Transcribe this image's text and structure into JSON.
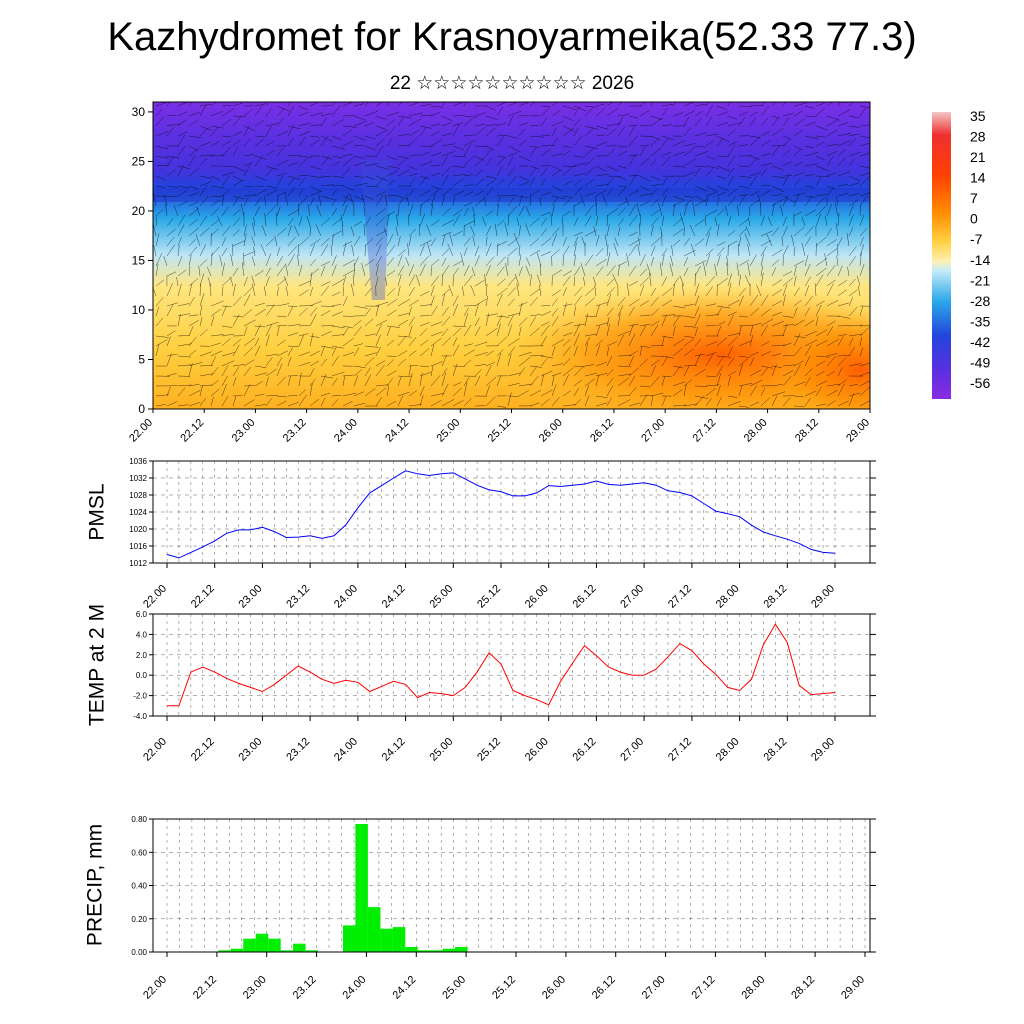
{
  "page": {
    "title": "Kazhydromet for Krasnoyarmeika(52.33 77.3)",
    "subtitle": "22 ☆☆☆☆☆☆☆☆☆☆ 2026"
  },
  "chart_data": [
    {
      "id": "cross-section",
      "type": "heatmap",
      "title": "",
      "x_tick_labels": [
        "22.00",
        "22.12",
        "23.00",
        "23.12",
        "24.00",
        "24.12",
        "25.00",
        "25.12",
        "26.00",
        "26.12",
        "27.00",
        "27.12",
        "28.00",
        "28.12",
        "29.00"
      ],
      "y_tick_labels": [
        "0",
        "5",
        "10",
        "15",
        "20",
        "25",
        "30"
      ],
      "ylim": [
        0,
        31
      ],
      "colorbar": {
        "labels": [
          "35",
          "28",
          "21",
          "14",
          "7",
          "0",
          "-7",
          "-14",
          "-21",
          "-28",
          "-35",
          "-42",
          "-49",
          "-56"
        ],
        "colors": {
          "warm": "#ff6a00",
          "yellow": "#ffd84a",
          "cyan": "#2aa8e8",
          "blue": "#3344e0",
          "violet": "#8a2be2"
        }
      }
    },
    {
      "id": "pmsl",
      "type": "line",
      "ylabel": "PMSL",
      "ylim": [
        1012,
        1036
      ],
      "y_tick_labels": [
        "1036",
        "1032",
        "1028",
        "1024",
        "1020",
        "1016",
        "1012"
      ],
      "y_ticks": [
        1036,
        1032,
        1028,
        1024,
        1020,
        1016,
        1012
      ],
      "x_tick_labels": [
        "22.00",
        "22.12",
        "23.00",
        "23.12",
        "24.00",
        "24.12",
        "25.00",
        "25.12",
        "26.00",
        "26.12",
        "27.00",
        "27.12",
        "28.00",
        "28.12",
        "29.00"
      ],
      "line_color": "#0000ff",
      "values": [
        1014.0,
        1013.2,
        1014.5,
        1015.8,
        1017.2,
        1019.0,
        1019.8,
        1019.8,
        1020.4,
        1019.4,
        1018.0,
        1018.1,
        1018.4,
        1017.8,
        1018.4,
        1021.0,
        1025.0,
        1028.5,
        1030.2,
        1032.0,
        1033.7,
        1033.0,
        1032.6,
        1033.0,
        1033.2,
        1031.8,
        1030.3,
        1029.2,
        1028.8,
        1027.8,
        1027.8,
        1028.5,
        1030.2,
        1030.0,
        1030.3,
        1030.6,
        1031.3,
        1030.5,
        1030.3,
        1030.6,
        1030.9,
        1030.3,
        1029.0,
        1028.6,
        1027.8,
        1026.0,
        1024.2,
        1023.6,
        1022.9,
        1020.9,
        1019.3,
        1018.4,
        1017.6,
        1016.6,
        1015.2,
        1014.5,
        1014.3
      ]
    },
    {
      "id": "temp2m",
      "type": "line",
      "ylabel": "TEMP at 2 M",
      "ylim": [
        -4.0,
        6.0
      ],
      "y_tick_labels": [
        "6.0",
        "4.0",
        "2.0",
        "0.0",
        "-2.0",
        "-4.0"
      ],
      "y_ticks": [
        6.0,
        4.0,
        2.0,
        0.0,
        -2.0,
        -4.0
      ],
      "x_tick_labels": [
        "22.00",
        "22.12",
        "23.00",
        "23.12",
        "24.00",
        "24.12",
        "25.00",
        "25.12",
        "26.00",
        "26.12",
        "27.00",
        "27.12",
        "28.00",
        "28.12",
        "29.00"
      ],
      "line_color": "#ff0000",
      "values": [
        -3.0,
        -3.0,
        0.3,
        0.8,
        0.3,
        -0.3,
        -0.8,
        -1.2,
        -1.6,
        -0.9,
        0.0,
        0.9,
        0.3,
        -0.4,
        -0.8,
        -0.5,
        -0.7,
        -1.6,
        -1.1,
        -0.6,
        -0.9,
        -2.2,
        -1.7,
        -1.8,
        -2.0,
        -1.2,
        0.3,
        2.2,
        1.1,
        -1.5,
        -2.0,
        -2.4,
        -2.9,
        -0.6,
        1.2,
        2.9,
        1.9,
        0.8,
        0.3,
        0.0,
        0.0,
        0.6,
        1.8,
        3.1,
        2.4,
        1.1,
        0.1,
        -1.2,
        -1.5,
        -0.4,
        3.0,
        5.0,
        3.2,
        -1.0,
        -1.9,
        -1.8,
        -1.7
      ]
    },
    {
      "id": "precip",
      "type": "bar",
      "ylabel": "PRECIP, mm",
      "ylim": [
        0,
        0.8
      ],
      "y_tick_labels": [
        "0.80",
        "0.60",
        "0.40",
        "0.20",
        "0.00"
      ],
      "y_ticks": [
        0.8,
        0.6,
        0.4,
        0.2,
        0.0
      ],
      "x_tick_labels": [
        "22.00",
        "22.12",
        "23.00",
        "23.12",
        "24.00",
        "24.12",
        "25.00",
        "25.12",
        "26.00",
        "26.12",
        "27.00",
        "27.12",
        "28.00",
        "28.12",
        "29.00"
      ],
      "bar_color": "#00ee00",
      "values": [
        0,
        0,
        0,
        0,
        0,
        0.01,
        0.02,
        0.08,
        0.11,
        0.08,
        0.01,
        0.05,
        0.01,
        0,
        0,
        0.16,
        0.77,
        0.27,
        0.14,
        0.15,
        0.03,
        0.01,
        0.01,
        0.02,
        0.03,
        0,
        0,
        0,
        0,
        0,
        0,
        0,
        0,
        0,
        0,
        0,
        0,
        0,
        0,
        0,
        0,
        0,
        0,
        0,
        0,
        0,
        0,
        0,
        0,
        0,
        0,
        0,
        0,
        0,
        0,
        0
      ]
    }
  ]
}
